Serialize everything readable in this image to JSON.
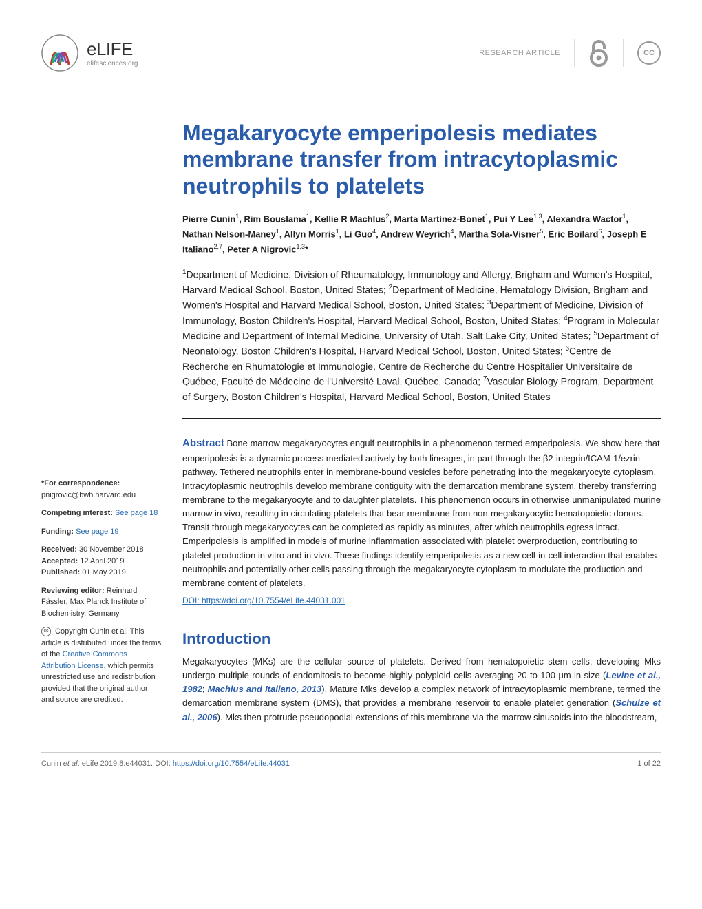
{
  "header": {
    "logo_name": "eLIFE",
    "logo_url": "elifesciences.org",
    "article_type": "RESEARCH ARTICLE"
  },
  "article": {
    "title": "Megakaryocyte emperipolesis mediates membrane transfer from intracytoplasmic neutrophils to platelets",
    "authors_html": "Pierre Cunin<sup>1</sup>, Rim Bouslama<sup>1</sup>, Kellie R Machlus<sup>2</sup>, Marta Martínez-Bonet<sup>1</sup>, Pui Y Lee<sup>1,3</sup>, Alexandra Wactor<sup>1</sup>, Nathan Nelson-Maney<sup>1</sup>, Allyn Morris<sup>1</sup>, Li Guo<sup>4</sup>, Andrew Weyrich<sup>4</sup>, Martha Sola-Visner<sup>5</sup>, Eric Boilard<sup>6</sup>, Joseph E Italiano<sup>2,7</sup>, Peter A Nigrovic<sup>1,3</sup>*",
    "affiliations_html": "<sup>1</sup>Department of Medicine, Division of Rheumatology, Immunology and Allergy, Brigham and Women's Hospital, Harvard Medical School, Boston, United States; <sup>2</sup>Department of Medicine, Hematology Division, Brigham and Women's Hospital and Harvard Medical School, Boston, United States; <sup>3</sup>Department of Medicine, Division of Immunology, Boston Children's Hospital, Harvard Medical School, Boston, United States; <sup>4</sup>Program in Molecular Medicine and Department of Internal Medicine, University of Utah, Salt Lake City, United States; <sup>5</sup>Department of Neonatology, Boston Children's Hospital, Harvard Medical School, Boston, United States; <sup>6</sup>Centre de Recherche en Rhumatologie et Immunologie, Centre de Recherche du Centre Hospitalier Universitaire de Québec, Faculté de Médecine de l'Université Laval, Québec, Canada; <sup>7</sup>Vascular Biology Program, Department of Surgery, Boston Children's Hospital, Harvard Medical School, Boston, United States",
    "abstract_label": "Abstract",
    "abstract_text": " Bone marrow megakaryocytes engulf neutrophils in a phenomenon termed emperipolesis. We show here that emperipolesis is a dynamic process mediated actively by both lineages, in part through the β2-integrin/ICAM-1/ezrin pathway. Tethered neutrophils enter in membrane-bound vesicles before penetrating into the megakaryocyte cytoplasm. Intracytoplasmic neutrophils develop membrane contiguity with the demarcation membrane system, thereby transferring membrane to the megakaryocyte and to daughter platelets. This phenomenon occurs in otherwise unmanipulated murine marrow in vivo, resulting in circulating platelets that bear membrane from non-megakaryocytic hematopoietic donors. Transit through megakaryocytes can be completed as rapidly as minutes, after which neutrophils egress intact. Emperipolesis is amplified in models of murine inflammation associated with platelet overproduction, contributing to platelet production in vitro and in vivo. These findings identify emperipolesis as a new cell-in-cell interaction that enables neutrophils and potentially other cells passing through the megakaryocyte cytoplasm to modulate the production and membrane content of platelets.",
    "doi": "DOI: https://doi.org/10.7554/eLife.44031.001",
    "intro_heading": "Introduction",
    "intro_html": "Megakaryocytes (MKs) are the cellular source of platelets. Derived from hematopoietic stem cells, developing Mks undergo multiple rounds of endomitosis to become highly-polyploid cells averaging 20 to 100 μm in size (<span class=\"cite\">Levine et al., 1982</span>; <span class=\"cite\">Machlus and Italiano, 2013</span>). Mature Mks develop a complex network of intracytoplasmic membrane, termed the demarcation membrane system (DMS), that provides a membrane reservoir to enable platelet generation (<span class=\"cite\">Schulze et al., 2006</span>). Mks then protrude pseudopodial extensions of this membrane via the marrow sinusoids into the bloodstream,"
  },
  "sidebar": {
    "correspondence_label": "*For correspondence:",
    "correspondence_email": "pnigrovic@bwh.harvard.edu",
    "competing_label": "Competing interest:",
    "competing_link": "See page 18",
    "funding_label": "Funding:",
    "funding_link": "See page 19",
    "received_label": "Received:",
    "received_date": " 30 November 2018",
    "accepted_label": "Accepted:",
    "accepted_date": " 12 April 2019",
    "published_label": "Published:",
    "published_date": " 01 May 2019",
    "reviewing_label": "Reviewing editor: ",
    "reviewing_editor": " Reinhard Fässler, Max Planck Institute of Biochemistry, Germany",
    "copyright_text": " Copyright Cunin et al. This article is distributed under the terms of the ",
    "cc_link": "Creative Commons Attribution License,",
    "copyright_tail": " which permits unrestricted use and redistribution provided that the original author and source are credited."
  },
  "footer": {
    "citation_prefix": "Cunin ",
    "citation_etal": "et al",
    "citation_middle": ". eLife 2019;8:e44031. ",
    "doi_label": "DOI: ",
    "doi_url": "https://doi.org/10.7554/eLife.44031",
    "page_num": "1 of 22"
  },
  "colors": {
    "brand_blue": "#2a5caa",
    "link_blue": "#2b6cb0",
    "text": "#222222",
    "muted": "#999999"
  }
}
